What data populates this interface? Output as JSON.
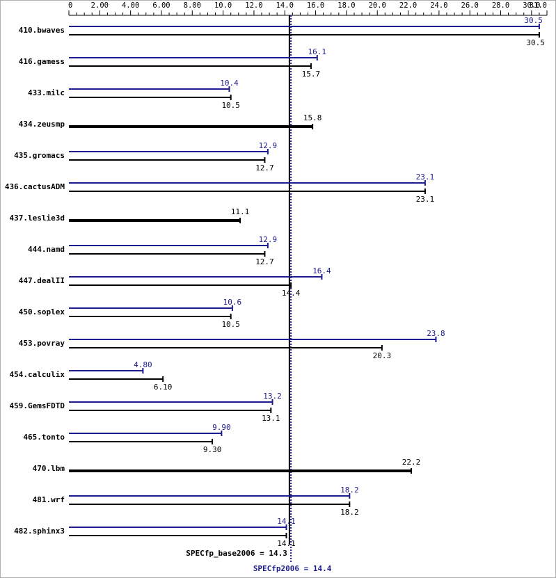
{
  "chart_data": {
    "type": "bar",
    "orientation": "horizontal",
    "x_axis": {
      "min": 0,
      "max": 31,
      "major_ticks": [
        0,
        2,
        4,
        6,
        8,
        10,
        12,
        14,
        16,
        18,
        20,
        22,
        24,
        26,
        28,
        30,
        31
      ],
      "tick_labels": [
        "0",
        "2.00",
        "4.00",
        "6.00",
        "8.00",
        "10.0",
        "12.0",
        "14.0",
        "16.0",
        "18.0",
        "20.0",
        "22.0",
        "24.0",
        "26.0",
        "28.0",
        "30.0",
        "31.0"
      ],
      "position": "top"
    },
    "colors": {
      "peak": "#1c1c8e",
      "base": "#000000",
      "reference_line": "#000000",
      "peak_reference_line": "#1c1c8e"
    },
    "benchmarks": [
      {
        "name": "410.bwaves",
        "peak": 30.5,
        "peak_label": "30.5",
        "base": 30.5,
        "base_label": "30.5"
      },
      {
        "name": "416.gamess",
        "peak": 16.1,
        "peak_label": "16.1",
        "base": 15.7,
        "base_label": "15.7"
      },
      {
        "name": "433.milc",
        "peak": 10.4,
        "peak_label": "10.4",
        "base": 10.5,
        "base_label": "10.5"
      },
      {
        "name": "434.zeusmp",
        "peak": null,
        "peak_label": "",
        "base": 15.8,
        "base_label": "15.8"
      },
      {
        "name": "435.gromacs",
        "peak": 12.9,
        "peak_label": "12.9",
        "base": 12.7,
        "base_label": "12.7"
      },
      {
        "name": "436.cactusADM",
        "peak": 23.1,
        "peak_label": "23.1",
        "base": 23.1,
        "base_label": "23.1"
      },
      {
        "name": "437.leslie3d",
        "peak": null,
        "peak_label": "",
        "base": 11.1,
        "base_label": "11.1"
      },
      {
        "name": "444.namd",
        "peak": 12.9,
        "peak_label": "12.9",
        "base": 12.7,
        "base_label": "12.7"
      },
      {
        "name": "447.dealII",
        "peak": 16.4,
        "peak_label": "16.4",
        "base": 14.4,
        "base_label": "14.4"
      },
      {
        "name": "450.soplex",
        "peak": 10.6,
        "peak_label": "10.6",
        "base": 10.5,
        "base_label": "10.5"
      },
      {
        "name": "453.povray",
        "peak": 23.8,
        "peak_label": "23.8",
        "base": 20.3,
        "base_label": "20.3"
      },
      {
        "name": "454.calculix",
        "peak": 4.8,
        "peak_label": "4.80",
        "base": 6.1,
        "base_label": "6.10"
      },
      {
        "name": "459.GemsFDTD",
        "peak": 13.2,
        "peak_label": "13.2",
        "base": 13.1,
        "base_label": "13.1"
      },
      {
        "name": "465.tonto",
        "peak": 9.9,
        "peak_label": "9.90",
        "base": 9.3,
        "base_label": "9.30"
      },
      {
        "name": "470.lbm",
        "peak": null,
        "peak_label": "",
        "base": 22.2,
        "base_label": "22.2"
      },
      {
        "name": "481.wrf",
        "peak": 18.2,
        "peak_label": "18.2",
        "base": 18.2,
        "base_label": "18.2"
      },
      {
        "name": "482.sphinx3",
        "peak": 14.1,
        "peak_label": "14.1",
        "base": 14.1,
        "base_label": "14.1"
      }
    ],
    "reference_lines": {
      "base": {
        "value": 14.3,
        "label": "SPECfp_base2006 = 14.3"
      },
      "peak": {
        "value": 14.4,
        "label": "SPECfp2006 = 14.4"
      }
    },
    "title": "",
    "xlabel": "",
    "ylabel": "",
    "grid": false,
    "legend": "none"
  }
}
